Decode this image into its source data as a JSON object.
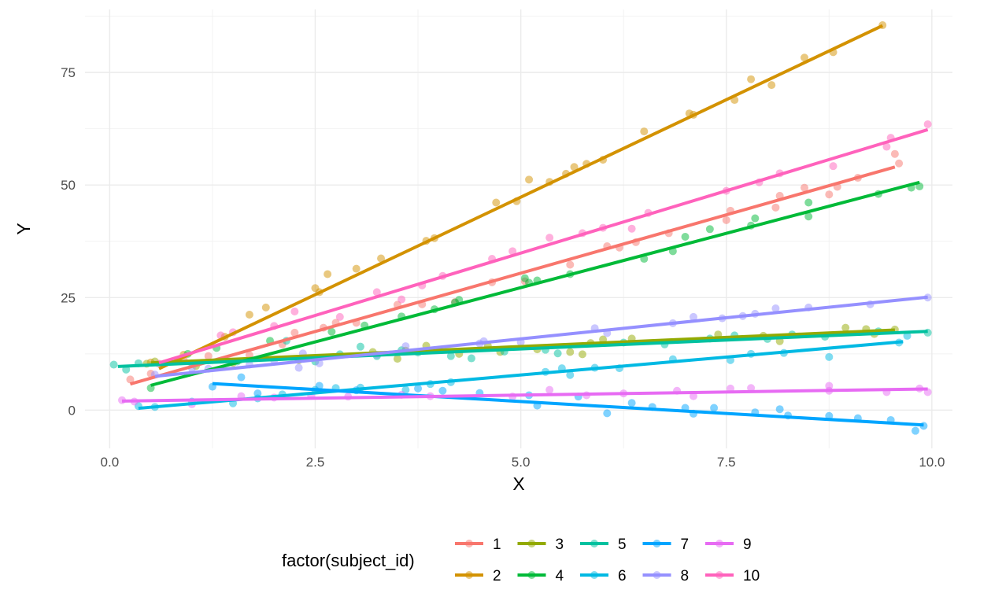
{
  "chart_data": {
    "type": "scatter",
    "xlabel": "X",
    "ylabel": "Y",
    "xlim": [
      -0.3,
      10.25
    ],
    "ylim": [
      -8.5,
      89
    ],
    "x_ticks": [
      0,
      2.5,
      5,
      7.5,
      10
    ],
    "x_tick_labels": [
      "0.0",
      "2.5",
      "5.0",
      "7.5",
      "10.0"
    ],
    "y_ticks": [
      0,
      25,
      50,
      75
    ],
    "y_tick_labels": [
      "0",
      "25",
      "50",
      "75"
    ],
    "grid": true,
    "legend": {
      "title": "factor(subject_id)",
      "position": "bottom"
    },
    "series": [
      {
        "name": "1",
        "color": "#F8766D",
        "line": {
          "x1": 0.25,
          "y1": 5.8,
          "x2": 9.55,
          "y2": 54.0
        },
        "points": [
          [
            0.25,
            6.8
          ],
          [
            0.5,
            8.1
          ],
          [
            0.9,
            11.3
          ],
          [
            1.2,
            12.0
          ],
          [
            1.7,
            12.2
          ],
          [
            2.1,
            14.6
          ],
          [
            2.25,
            17.2
          ],
          [
            2.6,
            18.3
          ],
          [
            2.75,
            19.4
          ],
          [
            3.0,
            19.4
          ],
          [
            3.5,
            23.4
          ],
          [
            3.8,
            23.5
          ],
          [
            4.2,
            24.0
          ],
          [
            4.65,
            28.4
          ],
          [
            5.05,
            28.6
          ],
          [
            5.6,
            32.3
          ],
          [
            6.05,
            36.4
          ],
          [
            6.2,
            36.1
          ],
          [
            6.4,
            37.3
          ],
          [
            6.8,
            39.3
          ],
          [
            7.5,
            42.2
          ],
          [
            7.55,
            44.3
          ],
          [
            8.1,
            45.0
          ],
          [
            8.15,
            47.6
          ],
          [
            8.45,
            49.4
          ],
          [
            8.75,
            47.9
          ],
          [
            8.85,
            49.6
          ],
          [
            9.1,
            51.6
          ],
          [
            9.55,
            56.9
          ],
          [
            9.6,
            54.8
          ]
        ]
      },
      {
        "name": "2",
        "color": "#D39200",
        "line": {
          "x1": 0.6,
          "y1": 9.2,
          "x2": 9.4,
          "y2": 85.4
        },
        "points": [
          [
            0.5,
            10.6
          ],
          [
            0.9,
            12.3
          ],
          [
            1.4,
            16.3
          ],
          [
            1.7,
            21.2
          ],
          [
            1.9,
            22.8
          ],
          [
            2.5,
            27.1
          ],
          [
            2.55,
            26.2
          ],
          [
            2.65,
            30.2
          ],
          [
            3.0,
            31.4
          ],
          [
            3.3,
            33.7
          ],
          [
            3.85,
            37.6
          ],
          [
            3.95,
            38.2
          ],
          [
            4.7,
            46.1
          ],
          [
            4.95,
            46.4
          ],
          [
            5.1,
            51.2
          ],
          [
            5.35,
            50.7
          ],
          [
            5.55,
            52.5
          ],
          [
            5.65,
            54.0
          ],
          [
            5.8,
            54.7
          ],
          [
            6.0,
            55.6
          ],
          [
            6.5,
            61.9
          ],
          [
            7.05,
            65.9
          ],
          [
            7.1,
            65.6
          ],
          [
            7.6,
            68.9
          ],
          [
            7.8,
            73.5
          ],
          [
            8.05,
            72.2
          ],
          [
            8.45,
            78.3
          ],
          [
            8.8,
            79.5
          ],
          [
            9.4,
            85.5
          ]
        ]
      },
      {
        "name": "3",
        "color": "#93AA00",
        "line": {
          "x1": 0.5,
          "y1": 10.5,
          "x2": 9.55,
          "y2": 17.8
        },
        "points": [
          [
            0.45,
            10.3
          ],
          [
            0.55,
            10.8
          ],
          [
            1.05,
            9.8
          ],
          [
            1.5,
            10.5
          ],
          [
            2.3,
            11.1
          ],
          [
            3.2,
            12.9
          ],
          [
            3.5,
            11.4
          ],
          [
            3.6,
            13.2
          ],
          [
            3.85,
            14.3
          ],
          [
            4.25,
            12.5
          ],
          [
            4.6,
            14.3
          ],
          [
            4.75,
            12.9
          ],
          [
            5.2,
            13.5
          ],
          [
            5.6,
            12.9
          ],
          [
            5.75,
            12.4
          ],
          [
            5.85,
            14.9
          ],
          [
            6.0,
            15.7
          ],
          [
            6.35,
            15.9
          ],
          [
            7.4,
            16.8
          ],
          [
            7.95,
            16.5
          ],
          [
            8.15,
            15.3
          ],
          [
            8.95,
            18.3
          ],
          [
            9.2,
            18.0
          ],
          [
            9.3,
            16.9
          ],
          [
            9.55,
            17.9
          ]
        ]
      },
      {
        "name": "4",
        "color": "#00BA38",
        "line": {
          "x1": 0.5,
          "y1": 5.5,
          "x2": 9.85,
          "y2": 50.6
        },
        "points": [
          [
            0.5,
            4.9
          ],
          [
            0.95,
            12.5
          ],
          [
            1.3,
            13.8
          ],
          [
            1.95,
            15.4
          ],
          [
            2.7,
            17.4
          ],
          [
            3.1,
            18.8
          ],
          [
            3.55,
            20.8
          ],
          [
            3.95,
            22.4
          ],
          [
            4.2,
            23.9
          ],
          [
            4.25,
            24.5
          ],
          [
            5.05,
            29.3
          ],
          [
            5.1,
            28.3
          ],
          [
            5.2,
            28.8
          ],
          [
            5.6,
            30.2
          ],
          [
            6.5,
            33.6
          ],
          [
            6.85,
            35.3
          ],
          [
            7.0,
            38.5
          ],
          [
            7.3,
            40.2
          ],
          [
            7.8,
            41.0
          ],
          [
            7.85,
            42.6
          ],
          [
            8.5,
            43.0
          ],
          [
            8.5,
            46.1
          ],
          [
            9.35,
            48.0
          ],
          [
            9.75,
            49.4
          ],
          [
            9.85,
            49.7
          ]
        ]
      },
      {
        "name": "5",
        "color": "#00C19F",
        "line": {
          "x1": 0.1,
          "y1": 9.7,
          "x2": 9.95,
          "y2": 17.5
        },
        "points": [
          [
            0.05,
            10.1
          ],
          [
            0.2,
            9.0
          ],
          [
            0.35,
            10.4
          ],
          [
            1.0,
            10.4
          ],
          [
            1.55,
            10.8
          ],
          [
            2.15,
            15.4
          ],
          [
            2.5,
            10.8
          ],
          [
            2.8,
            12.4
          ],
          [
            3.05,
            14.1
          ],
          [
            3.25,
            12.0
          ],
          [
            3.55,
            13.3
          ],
          [
            3.75,
            12.8
          ],
          [
            4.15,
            12.0
          ],
          [
            4.4,
            11.5
          ],
          [
            4.8,
            13.0
          ],
          [
            5.3,
            13.4
          ],
          [
            5.45,
            12.6
          ],
          [
            6.25,
            15.0
          ],
          [
            6.75,
            14.6
          ],
          [
            7.3,
            15.9
          ],
          [
            7.6,
            16.6
          ],
          [
            8.0,
            15.8
          ],
          [
            8.3,
            16.8
          ],
          [
            8.7,
            16.3
          ],
          [
            9.35,
            17.5
          ],
          [
            9.95,
            17.2
          ]
        ]
      },
      {
        "name": "6",
        "color": "#00B9E3",
        "line": {
          "x1": 0.35,
          "y1": 0.4,
          "x2": 9.65,
          "y2": 15.2
        },
        "points": [
          [
            0.35,
            0.9
          ],
          [
            0.55,
            0.7
          ],
          [
            1.0,
            1.9
          ],
          [
            1.5,
            1.5
          ],
          [
            1.8,
            2.6
          ],
          [
            2.1,
            3.5
          ],
          [
            2.5,
            4.5
          ],
          [
            2.75,
            4.9
          ],
          [
            3.05,
            5.0
          ],
          [
            3.6,
            4.5
          ],
          [
            3.9,
            5.8
          ],
          [
            4.15,
            6.2
          ],
          [
            5.3,
            8.5
          ],
          [
            5.5,
            9.3
          ],
          [
            5.6,
            7.8
          ],
          [
            5.9,
            9.4
          ],
          [
            6.2,
            9.3
          ],
          [
            6.85,
            11.3
          ],
          [
            7.55,
            11.1
          ],
          [
            7.8,
            12.5
          ],
          [
            8.2,
            12.7
          ],
          [
            8.75,
            11.8
          ],
          [
            9.6,
            15.0
          ],
          [
            9.7,
            16.5
          ]
        ]
      },
      {
        "name": "7",
        "color": "#00A5FF",
        "line": {
          "x1": 1.25,
          "y1": 5.9,
          "x2": 9.9,
          "y2": -3.3
        },
        "points": [
          [
            1.25,
            5.2
          ],
          [
            1.6,
            7.3
          ],
          [
            1.8,
            3.7
          ],
          [
            2.55,
            5.4
          ],
          [
            3.0,
            4.4
          ],
          [
            3.75,
            4.8
          ],
          [
            4.05,
            4.3
          ],
          [
            4.5,
            3.8
          ],
          [
            5.1,
            3.3
          ],
          [
            5.2,
            1.0
          ],
          [
            5.7,
            3.0
          ],
          [
            6.05,
            -0.7
          ],
          [
            6.35,
            1.6
          ],
          [
            6.6,
            0.7
          ],
          [
            7.0,
            0.5
          ],
          [
            7.1,
            -0.8
          ],
          [
            7.35,
            0.5
          ],
          [
            7.85,
            -0.5
          ],
          [
            8.15,
            0.2
          ],
          [
            8.25,
            -1.2
          ],
          [
            8.75,
            -1.3
          ],
          [
            9.1,
            -1.8
          ],
          [
            9.5,
            -2.2
          ],
          [
            9.8,
            -4.6
          ],
          [
            9.9,
            -3.5
          ]
        ]
      },
      {
        "name": "8",
        "color": "#9590FF",
        "line": {
          "x1": 0.55,
          "y1": 7.5,
          "x2": 9.95,
          "y2": 25.1
        },
        "points": [
          [
            0.55,
            7.9
          ],
          [
            1.0,
            9.3
          ],
          [
            1.2,
            9.2
          ],
          [
            1.7,
            10.1
          ],
          [
            2.0,
            11.1
          ],
          [
            2.3,
            9.4
          ],
          [
            2.35,
            12.6
          ],
          [
            2.55,
            10.4
          ],
          [
            3.25,
            12.3
          ],
          [
            3.6,
            14.2
          ],
          [
            4.5,
            14.8
          ],
          [
            4.55,
            15.3
          ],
          [
            5.0,
            15.1
          ],
          [
            5.9,
            18.2
          ],
          [
            6.05,
            17.1
          ],
          [
            6.85,
            19.3
          ],
          [
            7.1,
            20.7
          ],
          [
            7.45,
            20.4
          ],
          [
            7.7,
            20.9
          ],
          [
            7.85,
            21.4
          ],
          [
            8.1,
            22.6
          ],
          [
            8.5,
            22.8
          ],
          [
            9.25,
            23.5
          ],
          [
            9.95,
            25.0
          ]
        ]
      },
      {
        "name": "9",
        "color": "#E76BF3",
        "line": {
          "x1": 0.15,
          "y1": 2.0,
          "x2": 9.95,
          "y2": 4.7
        },
        "points": [
          [
            0.15,
            2.2
          ],
          [
            0.3,
            1.9
          ],
          [
            1.0,
            1.3
          ],
          [
            1.6,
            3.1
          ],
          [
            2.0,
            2.8
          ],
          [
            2.45,
            3.2
          ],
          [
            2.9,
            3.0
          ],
          [
            3.55,
            3.4
          ],
          [
            3.9,
            3.1
          ],
          [
            4.9,
            3.0
          ],
          [
            5.35,
            4.5
          ],
          [
            5.8,
            3.3
          ],
          [
            6.25,
            3.7
          ],
          [
            6.9,
            4.3
          ],
          [
            7.1,
            3.1
          ],
          [
            7.55,
            4.8
          ],
          [
            7.8,
            4.9
          ],
          [
            8.75,
            5.4
          ],
          [
            8.75,
            4.3
          ],
          [
            9.45,
            4.0
          ],
          [
            9.85,
            4.8
          ],
          [
            9.95,
            4.0
          ]
        ]
      },
      {
        "name": "10",
        "color": "#FF62BC",
        "line": {
          "x1": 0.6,
          "y1": 10.5,
          "x2": 9.95,
          "y2": 62.3
        },
        "points": [
          [
            0.6,
            10.3
          ],
          [
            1.35,
            16.6
          ],
          [
            1.5,
            17.3
          ],
          [
            2.0,
            18.7
          ],
          [
            2.25,
            21.9
          ],
          [
            2.8,
            20.7
          ],
          [
            3.25,
            26.2
          ],
          [
            3.55,
            24.6
          ],
          [
            3.8,
            27.7
          ],
          [
            4.05,
            29.8
          ],
          [
            4.65,
            33.6
          ],
          [
            4.9,
            35.3
          ],
          [
            5.35,
            38.3
          ],
          [
            5.75,
            39.3
          ],
          [
            6.0,
            40.5
          ],
          [
            6.35,
            40.3
          ],
          [
            6.55,
            43.8
          ],
          [
            7.5,
            48.7
          ],
          [
            7.9,
            50.6
          ],
          [
            8.15,
            52.6
          ],
          [
            8.8,
            54.2
          ],
          [
            9.45,
            58.5
          ],
          [
            9.5,
            60.5
          ],
          [
            9.95,
            63.5
          ]
        ]
      }
    ]
  }
}
